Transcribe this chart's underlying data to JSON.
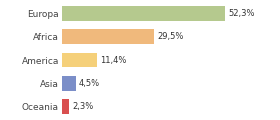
{
  "categories": [
    "Europa",
    "Africa",
    "America",
    "Asia",
    "Oceania"
  ],
  "values": [
    52.3,
    29.5,
    11.4,
    4.5,
    2.3
  ],
  "labels": [
    "52,3%",
    "29,5%",
    "11,4%",
    "4,5%",
    "2,3%"
  ],
  "bar_colors": [
    "#b5c98e",
    "#f0b97c",
    "#f5d07a",
    "#7b8ec8",
    "#d94f4f"
  ],
  "background_color": "#ffffff",
  "xlim": [
    0,
    68
  ],
  "label_fontsize": 6,
  "tick_fontsize": 6.5
}
